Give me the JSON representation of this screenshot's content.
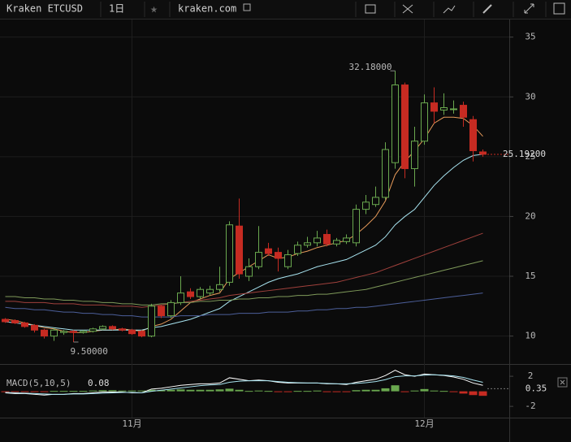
{
  "toolbar": {
    "symbol": "Kraken ETCUSD",
    "interval": "1日",
    "site": "kraken.com"
  },
  "chart_data": [
    {
      "type": "candlestick",
      "categories": [
        null,
        null,
        null,
        null,
        null,
        null,
        null,
        null,
        null,
        null,
        null,
        null,
        null,
        "11月",
        null,
        null,
        null,
        null,
        null,
        null,
        null,
        null,
        null,
        null,
        null,
        null,
        null,
        null,
        null,
        null,
        null,
        null,
        null,
        null,
        null,
        null,
        null,
        null,
        null,
        null,
        null,
        null,
        null,
        "12月",
        null,
        null,
        null,
        null,
        null,
        null
      ],
      "open": [
        11.4,
        11.3,
        11.1,
        10.9,
        10.5,
        10.0,
        10.3,
        10.4,
        10.3,
        10.4,
        10.6,
        10.8,
        10.6,
        10.5,
        10.4,
        10.0,
        12.5,
        11.7,
        12.8,
        13.7,
        13.3,
        13.6,
        13.9,
        14.5,
        19.2,
        15.0,
        15.8,
        17.3,
        17.0,
        15.8,
        16.9,
        17.6,
        17.8,
        18.5,
        17.7,
        17.9,
        17.8,
        20.6,
        21.0,
        21.6,
        24.5,
        31.0,
        24.0,
        26.3,
        29.5,
        28.9,
        29.0,
        29.3,
        28.1,
        25.4
      ],
      "high": [
        11.5,
        11.4,
        11.2,
        11.0,
        10.6,
        10.7,
        10.5,
        10.5,
        10.5,
        10.7,
        10.9,
        10.9,
        10.7,
        10.6,
        10.5,
        12.7,
        12.6,
        13.0,
        15.0,
        14.0,
        14.1,
        14.2,
        15.8,
        19.6,
        21.5,
        16.5,
        19.2,
        17.8,
        17.4,
        17.2,
        17.9,
        18.3,
        18.8,
        18.9,
        18.2,
        18.5,
        21.0,
        21.8,
        22.5,
        26.2,
        32.18,
        31.2,
        27.5,
        30.2,
        30.8,
        30.3,
        29.7,
        29.6,
        28.4,
        25.6
      ],
      "low": [
        11.1,
        11.0,
        10.7,
        10.3,
        9.8,
        9.6,
        10.1,
        9.5,
        10.2,
        10.3,
        10.5,
        10.5,
        10.4,
        10.1,
        9.9,
        9.9,
        11.5,
        11.5,
        12.6,
        13.1,
        13.1,
        13.4,
        13.7,
        14.2,
        14.8,
        14.6,
        15.6,
        16.7,
        15.4,
        15.6,
        16.7,
        17.4,
        17.5,
        17.5,
        17.5,
        17.7,
        17.5,
        20.2,
        20.8,
        21.4,
        24.0,
        23.2,
        22.5,
        26.0,
        27.8,
        28.5,
        28.6,
        27.5,
        24.6,
        25.0
      ],
      "close": [
        11.2,
        11.1,
        10.8,
        10.5,
        10.0,
        10.5,
        10.4,
        10.3,
        10.4,
        10.6,
        10.8,
        10.6,
        10.5,
        10.2,
        10.0,
        12.5,
        11.7,
        12.8,
        13.6,
        13.3,
        13.9,
        13.9,
        14.3,
        19.3,
        15.2,
        15.8,
        17.0,
        16.9,
        16.5,
        16.8,
        17.6,
        17.8,
        18.2,
        17.7,
        18.0,
        18.2,
        20.6,
        21.2,
        21.6,
        25.6,
        31.0,
        24.0,
        26.3,
        29.5,
        28.8,
        29.1,
        29.0,
        28.3,
        25.5,
        25.2
      ],
      "up_color": "#6aa84f",
      "down_color": "#c62b22",
      "series": [
        {
          "color": "#e69a5a",
          "values": [
            11.4,
            11.3,
            11.1,
            10.9,
            10.7,
            10.6,
            10.4,
            10.3,
            10.3,
            10.4,
            10.5,
            10.5,
            10.6,
            10.5,
            10.4,
            10.8,
            11.0,
            11.4,
            12.1,
            12.8,
            13.1,
            13.4,
            13.6,
            14.8,
            15.3,
            15.8,
            16.3,
            16.8,
            16.5,
            16.6,
            16.9,
            17.1,
            17.4,
            17.6,
            17.8,
            18.0,
            18.5,
            19.2,
            20.0,
            21.3,
            23.5,
            24.6,
            25.5,
            26.5,
            27.8,
            28.3,
            28.3,
            28.2,
            27.6,
            26.7
          ]
        },
        {
          "color": "#a8e4f0",
          "values": [
            11.2,
            11.1,
            11.0,
            10.9,
            10.8,
            10.7,
            10.6,
            10.5,
            10.5,
            10.5,
            10.5,
            10.5,
            10.5,
            10.5,
            10.5,
            10.7,
            10.8,
            11.0,
            11.2,
            11.4,
            11.7,
            12.0,
            12.3,
            12.9,
            13.3,
            13.7,
            14.1,
            14.5,
            14.8,
            15.0,
            15.2,
            15.5,
            15.8,
            16.0,
            16.2,
            16.4,
            16.8,
            17.2,
            17.6,
            18.3,
            19.3,
            20.0,
            20.6,
            21.6,
            22.6,
            23.4,
            24.1,
            24.7,
            25.1,
            25.2
          ]
        },
        {
          "color": "#a0413c",
          "values": [
            12.9,
            12.9,
            12.8,
            12.8,
            12.8,
            12.7,
            12.7,
            12.7,
            12.6,
            12.6,
            12.6,
            12.5,
            12.5,
            12.5,
            12.4,
            12.5,
            12.6,
            12.7,
            12.8,
            12.9,
            13.0,
            13.1,
            13.2,
            13.4,
            13.5,
            13.6,
            13.7,
            13.8,
            13.9,
            14.0,
            14.1,
            14.2,
            14.3,
            14.4,
            14.5,
            14.7,
            14.9,
            15.1,
            15.3,
            15.6,
            15.9,
            16.2,
            16.5,
            16.8,
            17.1,
            17.4,
            17.7,
            18.0,
            18.3,
            18.6
          ]
        },
        {
          "color": "#7f9a5a",
          "values": [
            13.3,
            13.3,
            13.2,
            13.2,
            13.1,
            13.1,
            13.0,
            13.0,
            12.9,
            12.9,
            12.8,
            12.8,
            12.7,
            12.7,
            12.6,
            12.6,
            12.7,
            12.7,
            12.8,
            12.8,
            12.9,
            12.9,
            13.0,
            13.0,
            13.1,
            13.1,
            13.2,
            13.2,
            13.3,
            13.3,
            13.4,
            13.4,
            13.5,
            13.5,
            13.6,
            13.7,
            13.8,
            13.9,
            14.1,
            14.3,
            14.5,
            14.7,
            14.9,
            15.1,
            15.3,
            15.5,
            15.7,
            15.9,
            16.1,
            16.3
          ]
        },
        {
          "color": "#4c5f9a",
          "values": [
            12.4,
            12.3,
            12.3,
            12.2,
            12.2,
            12.1,
            12.0,
            12.0,
            11.9,
            11.9,
            11.8,
            11.8,
            11.7,
            11.7,
            11.6,
            11.6,
            11.6,
            11.6,
            11.7,
            11.7,
            11.7,
            11.8,
            11.8,
            11.8,
            11.9,
            11.9,
            11.9,
            12.0,
            12.0,
            12.0,
            12.1,
            12.1,
            12.2,
            12.2,
            12.3,
            12.3,
            12.4,
            12.4,
            12.5,
            12.6,
            12.7,
            12.8,
            12.9,
            13.0,
            13.1,
            13.2,
            13.3,
            13.4,
            13.5,
            13.6
          ]
        }
      ],
      "annotations": [
        {
          "value": 32.18,
          "index": 40,
          "label": "32.18000"
        },
        {
          "value": 9.5,
          "index": 7,
          "label": "9.50000"
        }
      ],
      "last_price": {
        "value": 25.192,
        "label": "25.19200"
      },
      "ylim": [
        7.8,
        36.2
      ],
      "yticks": [
        10,
        15,
        20,
        25,
        30,
        35
      ],
      "grid": true
    },
    {
      "type": "macd",
      "title": "MACD(5,10,5)",
      "last_value": 0.08,
      "marker": 0.35,
      "series": [
        {
          "color": "#ffffff",
          "values": [
            -0.2,
            -0.3,
            -0.3,
            -0.4,
            -0.5,
            -0.4,
            -0.4,
            -0.3,
            -0.3,
            -0.2,
            -0.1,
            -0.1,
            -0.1,
            -0.2,
            -0.2,
            0.3,
            0.4,
            0.6,
            0.8,
            0.9,
            1.0,
            1.0,
            1.1,
            1.8,
            1.6,
            1.4,
            1.5,
            1.4,
            1.2,
            1.1,
            1.1,
            1.1,
            1.1,
            1.0,
            1.0,
            0.9,
            1.2,
            1.4,
            1.6,
            2.1,
            2.8,
            2.2,
            2.0,
            2.3,
            2.2,
            2.1,
            1.9,
            1.6,
            1.1,
            0.8
          ]
        },
        {
          "color": "#a8e4f0",
          "values": [
            -0.15,
            -0.2,
            -0.25,
            -0.3,
            -0.35,
            -0.4,
            -0.4,
            -0.35,
            -0.35,
            -0.3,
            -0.25,
            -0.2,
            -0.15,
            -0.15,
            -0.2,
            0.0,
            0.15,
            0.3,
            0.45,
            0.6,
            0.75,
            0.85,
            0.9,
            1.2,
            1.35,
            1.4,
            1.4,
            1.4,
            1.3,
            1.2,
            1.15,
            1.1,
            1.1,
            1.05,
            1.0,
            1.0,
            1.05,
            1.15,
            1.3,
            1.55,
            1.95,
            2.05,
            2.05,
            2.15,
            2.2,
            2.15,
            2.05,
            1.85,
            1.5,
            1.2
          ]
        }
      ],
      "histogram": [
        -0.05,
        -0.05,
        -0.05,
        -0.05,
        -0.05,
        0.05,
        0.05,
        0.05,
        0.05,
        0.1,
        0.15,
        0.15,
        0.1,
        0.1,
        0.1,
        0.2,
        0.15,
        0.2,
        0.25,
        0.2,
        0.2,
        0.2,
        0.25,
        0.35,
        0.2,
        0.05,
        0.1,
        0.05,
        -0.05,
        -0.05,
        0.05,
        0.05,
        0.1,
        -0.05,
        -0.05,
        -0.05,
        0.15,
        0.2,
        0.2,
        0.4,
        0.8,
        -0.1,
        0.1,
        0.3,
        0.1,
        0.05,
        -0.1,
        -0.3,
        -0.5,
        -0.6
      ],
      "up_color": "#6aa84f",
      "down_color": "#c62b22",
      "ylim": [
        -3.5,
        3.2
      ],
      "yticks": [
        2,
        -2
      ]
    }
  ]
}
